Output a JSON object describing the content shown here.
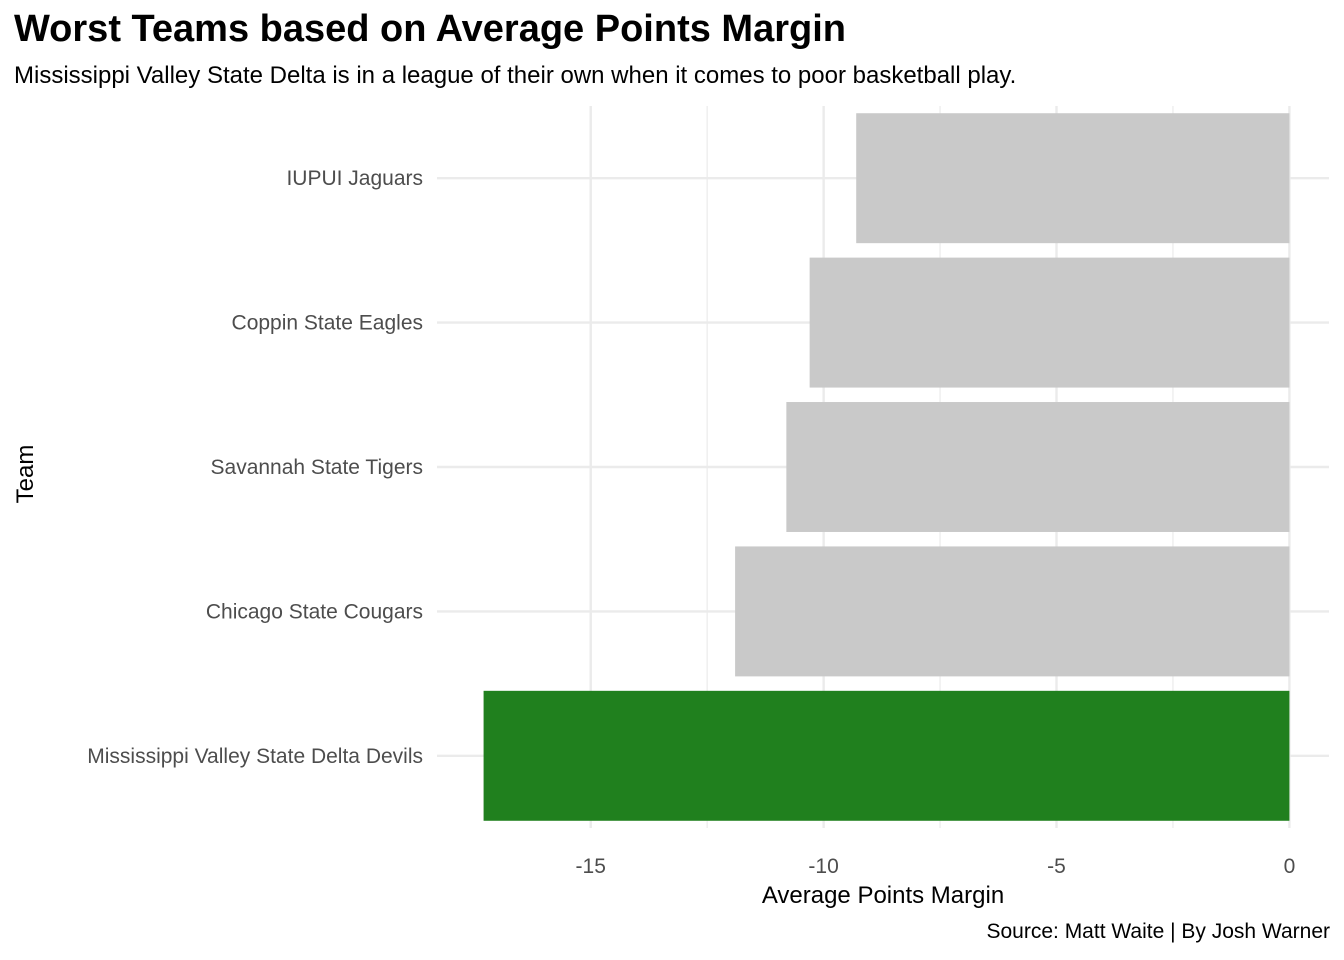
{
  "title": "Worst Teams based on Average Points Margin",
  "subtitle": "Mississippi Valley State Delta is in a league of their own when it comes to poor basketball play.",
  "caption": "Source: Matt Waite | By Josh Warner",
  "chart_data": {
    "type": "bar",
    "orientation": "horizontal",
    "categories": [
      "IUPUI Jaguars",
      "Coppin State Eagles",
      "Savannah State Tigers",
      "Chicago State Cougars",
      "Mississippi Valley State Delta Devils"
    ],
    "values": [
      -9.3,
      -10.3,
      -10.8,
      -11.9,
      -17.3
    ],
    "highlight": "Mississippi Valley State Delta Devils",
    "xlabel": "Average Points Margin",
    "ylabel": "Team",
    "xlim": [
      -18.3,
      0.85
    ],
    "xticks": [
      -15,
      -10,
      -5,
      0
    ],
    "xtick_labels": [
      "-15",
      "-10",
      "-5",
      "0"
    ],
    "grid": true,
    "legend": "none",
    "colors": {
      "default": "#c9c9c9",
      "highlight": "#20801e",
      "grid": "#ebebeb"
    }
  }
}
